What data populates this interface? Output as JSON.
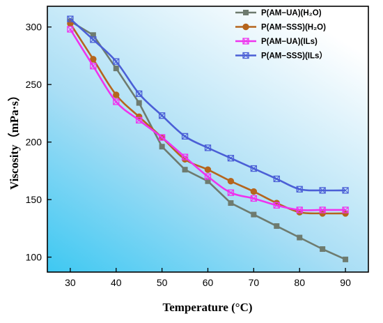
{
  "chart_data": {
    "type": "line",
    "title": "",
    "xlabel": "Temperature (°C)",
    "ylabel": "Viscosity（mPa·s）",
    "xlim": [
      25,
      95
    ],
    "ylim": [
      87,
      318
    ],
    "xticks": [
      30,
      40,
      50,
      60,
      70,
      80,
      90
    ],
    "yticks": [
      100,
      150,
      200,
      250,
      300
    ],
    "grid": false,
    "legend_position": "top-right",
    "x": [
      30,
      35,
      40,
      45,
      50,
      55,
      60,
      65,
      70,
      75,
      80,
      85,
      90
    ],
    "series": [
      {
        "name": "P(AM−UA)(H₂O)",
        "color": "#6e7b6f",
        "marker": "square",
        "values": [
          305,
          293,
          264,
          234,
          196,
          176,
          166,
          147,
          137,
          127,
          117,
          107,
          98
        ]
      },
      {
        "name": "P(AM−SSS)(H₂O)",
        "color": "#b5651d",
        "marker": "circle",
        "values": [
          303,
          272,
          241,
          222,
          204,
          185,
          176,
          166,
          157,
          147,
          139,
          138,
          138
        ]
      },
      {
        "name": "P(AM−UA)(ILs)",
        "color": "#ee33ee",
        "marker": "square-x",
        "values": [
          298,
          266,
          235,
          219,
          204,
          187,
          170,
          156,
          151,
          145,
          141,
          141,
          141
        ]
      },
      {
        "name": "P(AM−SSS)(ILs）",
        "color": "#4b5fd6",
        "marker": "square-x",
        "values": [
          307,
          289,
          270,
          242,
          223,
          205,
          195,
          186,
          177,
          168,
          159,
          158,
          158
        ]
      }
    ]
  }
}
